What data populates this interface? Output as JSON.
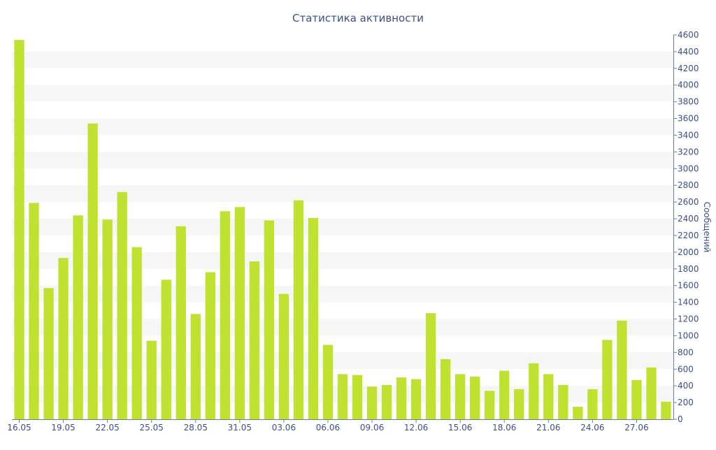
{
  "chart_data": {
    "type": "bar",
    "title": "Статистика активности",
    "xlabel": "",
    "ylabel": "Сообщений",
    "ylim": [
      0,
      4600
    ],
    "y_ticks": [
      0,
      200,
      400,
      600,
      800,
      1000,
      1200,
      1400,
      1600,
      1800,
      2000,
      2200,
      2400,
      2600,
      2800,
      3000,
      3200,
      3400,
      3600,
      3800,
      4000,
      4200,
      4400,
      4600
    ],
    "y_axis_side": "right",
    "grid": "alternating horizontal bands",
    "legend": "none",
    "categories": [
      "16.05",
      "17.05",
      "18.05",
      "19.05",
      "20.05",
      "21.05",
      "22.05",
      "23.05",
      "24.05",
      "25.05",
      "26.05",
      "27.05",
      "28.05",
      "29.05",
      "30.05",
      "31.05",
      "01.06",
      "02.06",
      "03.06",
      "04.06",
      "05.06",
      "06.06",
      "07.06",
      "08.06",
      "09.06",
      "10.06",
      "11.06",
      "12.06",
      "13.06",
      "14.06",
      "15.06",
      "16.06",
      "17.06",
      "18.06",
      "19.06",
      "20.06",
      "21.06",
      "22.06",
      "23.06",
      "24.06",
      "25.06",
      "26.06",
      "27.06",
      "28.06",
      "29.06"
    ],
    "x_tick_labels": [
      "16.05",
      "19.05",
      "22.05",
      "25.05",
      "28.05",
      "31.05",
      "03.06",
      "06.06",
      "09.06",
      "12.06",
      "15.06",
      "18.06",
      "21.06",
      "24.06",
      "27.06"
    ],
    "values": [
      4540,
      2590,
      1570,
      1930,
      2440,
      3540,
      2390,
      2720,
      2060,
      940,
      1670,
      2310,
      1260,
      1760,
      2490,
      2540,
      1890,
      2380,
      1500,
      2620,
      2410,
      890,
      540,
      530,
      390,
      410,
      500,
      480,
      1270,
      720,
      540,
      510,
      340,
      580,
      360,
      670,
      540,
      410,
      150,
      360,
      950,
      1180,
      470,
      620,
      210
    ],
    "colors": {
      "bar": "#bfe12f",
      "axis": "#6b7a9e",
      "text": "#3a4f8a",
      "band": "#f6f6f6"
    }
  }
}
